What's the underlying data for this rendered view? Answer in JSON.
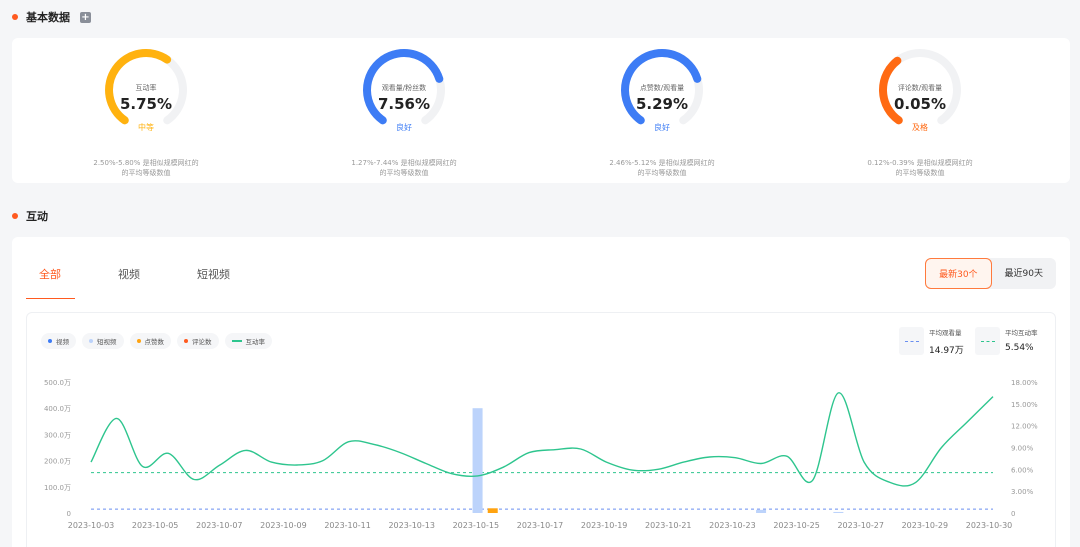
{
  "basic": {
    "title": "基本数据"
  },
  "metrics": [
    {
      "label": "互动率",
      "value": "5.75%",
      "level": "中等",
      "desc1": "2.50%-5.80% 是相似规模网红的",
      "desc2": "的平均等级数值",
      "color": "#ffb20f",
      "fraction": 0.62
    },
    {
      "label": "观看量/粉丝数",
      "value": "7.56%",
      "level": "良好",
      "desc1": "1.27%-7.44% 是相似规模网红的",
      "desc2": "的平均等级数值",
      "color": "#3d7cf5",
      "fraction": 0.75
    },
    {
      "label": "点赞数/观看量",
      "value": "5.29%",
      "level": "良好",
      "desc1": "2.46%-5.12% 是相似规模网红的",
      "desc2": "的平均等级数值",
      "color": "#3d7cf5",
      "fraction": 0.75
    },
    {
      "label": "评论数/观看量",
      "value": "0.05%",
      "level": "及格",
      "desc1": "0.12%-0.39% 是相似规模网红的",
      "desc2": "的平均等级数值",
      "color": "#ff6a13",
      "fraction": 0.37
    }
  ],
  "interaction": {
    "title": "互动",
    "tabs": [
      "全部",
      "视频",
      "短视频"
    ],
    "range": [
      "最新30个",
      "最近90天"
    ],
    "legend": [
      {
        "label": "视频",
        "color": "#3d7cf5",
        "shape": "dot"
      },
      {
        "label": "短视频",
        "color": "#bcd3fb",
        "shape": "dot"
      },
      {
        "label": "点赞数",
        "color": "#ffa310",
        "shape": "dot"
      },
      {
        "label": "评论数",
        "color": "#ff5a1f",
        "shape": "dot"
      },
      {
        "label": "互动率",
        "color": "#2ec58e",
        "shape": "line"
      }
    ],
    "avg_views": {
      "label": "平均观看量",
      "value": "14.97万",
      "color": "#6a8ff0"
    },
    "avg_rate": {
      "label": "平均互动率",
      "value": "5.54%",
      "color": "#2ec58e"
    }
  },
  "chart_data": {
    "type": "bar",
    "categories": [
      "2023-10-03",
      "2023-10-05",
      "2023-10-07",
      "2023-10-09",
      "2023-10-11",
      "2023-10-13",
      "2023-10-15",
      "2023-10-17",
      "2023-10-19",
      "2023-10-21",
      "2023-10-23",
      "2023-10-25",
      "2023-10-27",
      "2023-10-29",
      "2023-10-30"
    ],
    "y_left": {
      "ticks": [
        "0",
        "100.0万",
        "200.0万",
        "300.0万",
        "400.0万",
        "500.0万"
      ],
      "range": [
        0,
        500
      ]
    },
    "y_right": {
      "ticks": [
        "0",
        "3.00%",
        "6.00%",
        "9.00%",
        "12.00%",
        "15.00%",
        "18.00%"
      ],
      "range": [
        0,
        18
      ]
    },
    "series": [
      {
        "name": "短视频",
        "kind": "bar",
        "points": [
          [
            15.0,
            400
          ],
          [
            26.0,
            12
          ],
          [
            29.0,
            4
          ]
        ]
      },
      {
        "name": "点赞数",
        "kind": "bar",
        "points": [
          [
            15.2,
            18
          ]
        ]
      },
      {
        "name": "互动率",
        "kind": "line",
        "points": [
          [
            0,
            7.0
          ],
          [
            1,
            13.0
          ],
          [
            2,
            6.4
          ],
          [
            3,
            8.2
          ],
          [
            4,
            4.6
          ],
          [
            5,
            6.6
          ],
          [
            6,
            8.6
          ],
          [
            7,
            7.0
          ],
          [
            8,
            6.6
          ],
          [
            9,
            7.2
          ],
          [
            10,
            9.8
          ],
          [
            11,
            9.4
          ],
          [
            12,
            8.3
          ],
          [
            13,
            6.8
          ],
          [
            14,
            5.4
          ],
          [
            15,
            5.1
          ],
          [
            16,
            6.3
          ],
          [
            17,
            8.3
          ],
          [
            18,
            8.7
          ],
          [
            19,
            8.8
          ],
          [
            20,
            7.0
          ],
          [
            21,
            5.9
          ],
          [
            22,
            6.0
          ],
          [
            23,
            7.0
          ],
          [
            24,
            7.7
          ],
          [
            25,
            7.6
          ],
          [
            26,
            6.8
          ],
          [
            27,
            7.8
          ],
          [
            28,
            4.5
          ],
          [
            29,
            16.5
          ],
          [
            30,
            7.0
          ],
          [
            31,
            4.2
          ],
          [
            32,
            4.2
          ],
          [
            33,
            9.0
          ],
          [
            34,
            12.5
          ],
          [
            35,
            16.0
          ]
        ]
      }
    ],
    "avg_views_line": 14.97,
    "avg_rate_line": 5.54
  }
}
